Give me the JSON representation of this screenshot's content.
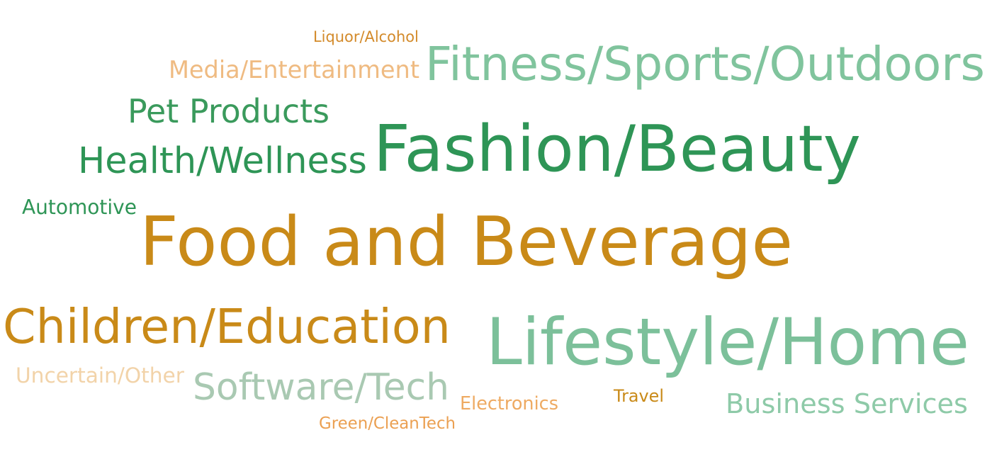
{
  "chart_data": {
    "type": "wordcloud",
    "words": [
      {
        "text": "Food and Beverage",
        "color": "#c98a18"
      },
      {
        "text": "Fashion/Beauty",
        "color": "#2e9556"
      },
      {
        "text": "Lifestyle/Home",
        "color": "#7cc09a"
      },
      {
        "text": "Fitness/Sports/Outdoors",
        "color": "#80c49d"
      },
      {
        "text": "Children/Education",
        "color": "#c98a18"
      },
      {
        "text": "Health/Wellness",
        "color": "#2e9556"
      },
      {
        "text": "Pet Products",
        "color": "#3a9a5c"
      },
      {
        "text": "Software/Tech",
        "color": "#a9c9b2"
      },
      {
        "text": "Business Services",
        "color": "#8ecaa8"
      },
      {
        "text": "Media/Entertainment",
        "color": "#efbb82"
      },
      {
        "text": "Uncertain/Other",
        "color": "#f2d3a9"
      },
      {
        "text": "Automotive",
        "color": "#2e9556"
      },
      {
        "text": "Electronics",
        "color": "#eeaa62"
      },
      {
        "text": "Liquor/Alcohol",
        "color": "#d38a2a"
      },
      {
        "text": "Green/CleanTech",
        "color": "#eba052"
      },
      {
        "text": "Travel",
        "color": "#c98a18"
      }
    ]
  }
}
